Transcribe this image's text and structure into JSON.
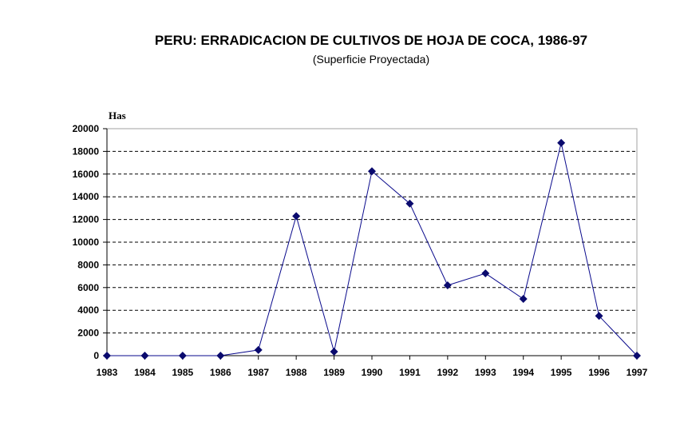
{
  "chart_data": {
    "type": "line",
    "title": "PERU: ERRADICACION DE CULTIVOS DE HOJA DE COCA, 1986-97",
    "subtitle": "(Superficie Proyectada)",
    "ylabel": "Has",
    "xlabel": "",
    "x": [
      "1983",
      "1984",
      "1985",
      "1986",
      "1987",
      "1988",
      "1989",
      "1990",
      "1991",
      "1992",
      "1993",
      "1994",
      "1995",
      "1996",
      "1997"
    ],
    "series": [
      {
        "values": [
          0,
          0,
          0,
          0,
          500,
          12300,
          350,
          16250,
          13400,
          6200,
          7250,
          5000,
          18750,
          3500,
          0
        ]
      }
    ],
    "ylim": [
      0,
      20000
    ],
    "yticks": [
      0,
      2000,
      4000,
      6000,
      8000,
      10000,
      12000,
      14000,
      16000,
      18000,
      20000
    ],
    "grid": true,
    "colors": {
      "line": "#0a0a8c",
      "marker": "#0a0a6e",
      "grid": "#000000"
    }
  }
}
